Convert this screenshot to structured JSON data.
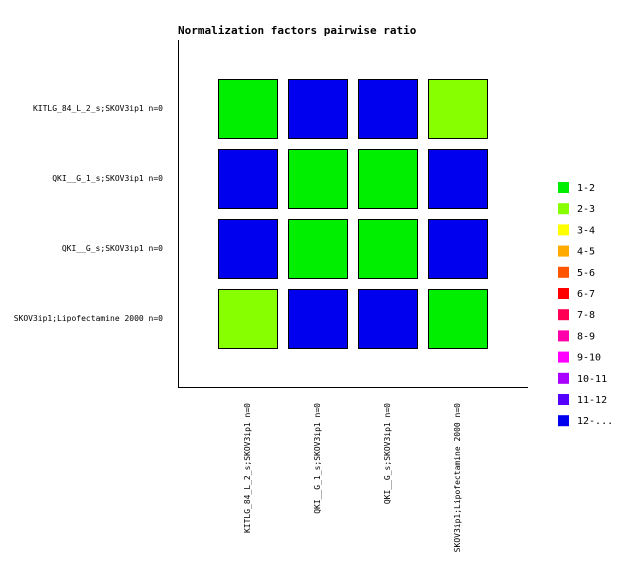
{
  "chart_data": {
    "type": "heatmap",
    "title": "Normalization factors pairwise ratio",
    "rows": [
      "KITLG_84_L_2_s;SKOV3ip1 n=0",
      "QKI__G_1_s;SKOV3ip1 n=0",
      "QKI__G_s;SKOV3ip1 n=0",
      "SKOV3ip1;Lipofectamine 2000 n=0"
    ],
    "columns": [
      "KITLG_84_L_2_s;SKOV3ip1 n=0",
      "QKI__G_1_s;SKOV3ip1 n=0",
      "QKI__G_s;SKOV3ip1 n=0",
      "SKOV3ip1;Lipofectamine 2000 n=0"
    ],
    "values": [
      [
        "1-2",
        "12-...",
        "12-...",
        "2-3"
      ],
      [
        "12-...",
        "1-2",
        "1-2",
        "12-..."
      ],
      [
        "12-...",
        "1-2",
        "1-2",
        "12-..."
      ],
      [
        "2-3",
        "12-...",
        "12-...",
        "1-2"
      ]
    ],
    "legend": [
      {
        "name": "1-2",
        "color": "#00ee00"
      },
      {
        "name": "2-3",
        "color": "#88ff00"
      },
      {
        "name": "3-4",
        "color": "#ffff00"
      },
      {
        "name": "4-5",
        "color": "#ffaa00"
      },
      {
        "name": "5-6",
        "color": "#ff5500"
      },
      {
        "name": "6-7",
        "color": "#ff0000"
      },
      {
        "name": "7-8",
        "color": "#ff0055"
      },
      {
        "name": "8-9",
        "color": "#ff00aa"
      },
      {
        "name": "9-10",
        "color": "#ff00ff"
      },
      {
        "name": "10-11",
        "color": "#aa00ff"
      },
      {
        "name": "11-12",
        "color": "#5500ff"
      },
      {
        "name": "12-...",
        "color": "#0000ee"
      }
    ]
  }
}
